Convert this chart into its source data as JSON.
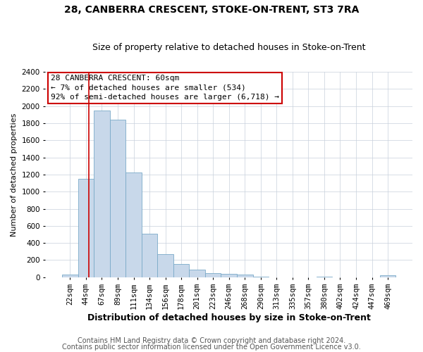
{
  "title1": "28, CANBERRA CRESCENT, STOKE-ON-TRENT, ST3 7RA",
  "title2": "Size of property relative to detached houses in Stoke-on-Trent",
  "xlabel": "Distribution of detached houses by size in Stoke-on-Trent",
  "ylabel": "Number of detached properties",
  "footnote1": "Contains HM Land Registry data © Crown copyright and database right 2024.",
  "footnote2": "Contains public sector information licensed under the Open Government Licence v3.0.",
  "annotation_line1": "28 CANBERRA CRESCENT: 60sqm",
  "annotation_line2": "← 7% of detached houses are smaller (534)",
  "annotation_line3": "92% of semi-detached houses are larger (6,718) →",
  "categories": [
    "22sqm",
    "44sqm",
    "67sqm",
    "89sqm",
    "111sqm",
    "134sqm",
    "156sqm",
    "178sqm",
    "201sqm",
    "223sqm",
    "246sqm",
    "268sqm",
    "290sqm",
    "313sqm",
    "335sqm",
    "357sqm",
    "380sqm",
    "402sqm",
    "424sqm",
    "447sqm",
    "469sqm"
  ],
  "values": [
    30,
    1150,
    1950,
    1840,
    1220,
    510,
    270,
    155,
    90,
    50,
    40,
    30,
    10,
    2,
    0,
    0,
    10,
    0,
    0,
    0,
    20
  ],
  "bar_color": "#c8d8ea",
  "bar_edge_color": "#7aaac8",
  "marker_color": "#cc0000",
  "ylim": [
    0,
    2400
  ],
  "yticks": [
    0,
    200,
    400,
    600,
    800,
    1000,
    1200,
    1400,
    1600,
    1800,
    2000,
    2200,
    2400
  ],
  "annotation_box_color": "#cc0000",
  "grid_color": "#c8d0dc",
  "background_color": "#ffffff",
  "title1_fontsize": 10,
  "title2_fontsize": 9,
  "xlabel_fontsize": 9,
  "ylabel_fontsize": 8,
  "annotation_fontsize": 8,
  "tick_fontsize": 7.5,
  "footnote_fontsize": 7
}
